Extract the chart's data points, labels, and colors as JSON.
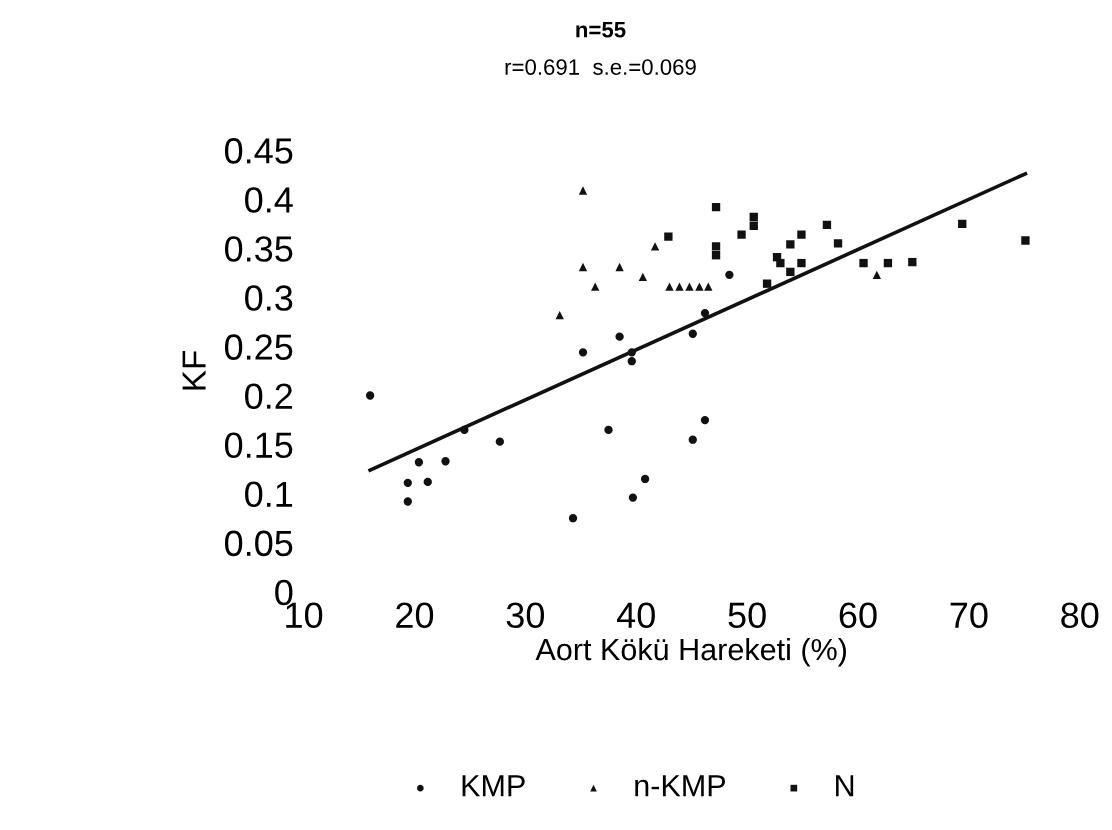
{
  "chart_data": {
    "type": "scatter",
    "title": "n=55",
    "subtitle": "r=0.691  s.e.=0.069",
    "xlabel": "Aort Kökü Hareketi (%)",
    "ylabel": "KF",
    "xlim": [
      10,
      80
    ],
    "xticks": [
      10,
      20,
      30,
      40,
      50,
      60,
      70,
      80
    ],
    "ylim": [
      0,
      0.45
    ],
    "yticks": [
      0,
      0.05,
      0.1,
      0.15,
      0.2,
      0.25,
      0.3,
      0.35,
      0.4,
      0.45
    ],
    "grid": false,
    "legend": "bottom",
    "series": [
      {
        "name": "KMP",
        "color": "#111111",
        "marker": "circle",
        "x": [
          16,
          20.4,
          22.8,
          19.4,
          19.4,
          21.2,
          24.5,
          27.7,
          37.5,
          34.3,
          40.8,
          39.7,
          35.2,
          38.5,
          39.6,
          39.6,
          48.4,
          46.2,
          45.1,
          46.2,
          45.1
        ],
        "values": [
          0.2,
          0.132,
          0.133,
          0.111,
          0.092,
          0.112,
          0.165,
          0.153,
          0.165,
          0.075,
          0.115,
          0.096,
          0.244,
          0.26,
          0.244,
          0.235,
          0.323,
          0.284,
          0.263,
          0.175,
          0.155
        ]
      },
      {
        "name": "n-KMP",
        "color": "#111111",
        "marker": "triangle",
        "x": [
          35.2,
          35.2,
          38.5,
          36.3,
          40.6,
          41.7,
          33.1,
          43.0,
          43.9,
          44.8,
          45.7,
          46.5,
          61.7
        ],
        "values": [
          0.409,
          0.331,
          0.331,
          0.311,
          0.321,
          0.352,
          0.282,
          0.311,
          0.311,
          0.311,
          0.311,
          0.311,
          0.323
        ]
      },
      {
        "name": "N",
        "color": "#111111",
        "marker": "square",
        "x": [
          47.2,
          50.6,
          50.6,
          49.5,
          42.9,
          47.2,
          47.2,
          54.9,
          57.2,
          53.9,
          58.2,
          52.7,
          53.0,
          54.9,
          53.9,
          51.8,
          60.5,
          62.7,
          64.9,
          69.4,
          75.1
        ],
        "values": [
          0.392,
          0.382,
          0.373,
          0.364,
          0.362,
          0.352,
          0.343,
          0.364,
          0.374,
          0.354,
          0.355,
          0.341,
          0.335,
          0.335,
          0.326,
          0.314,
          0.335,
          0.335,
          0.336,
          0.375,
          0.358
        ]
      },
      {
        "type": "line",
        "color": "#111111",
        "line_style": "solid",
        "x": [
          16,
          75.1
        ],
        "values": [
          0.124,
          0.426
        ]
      }
    ]
  }
}
